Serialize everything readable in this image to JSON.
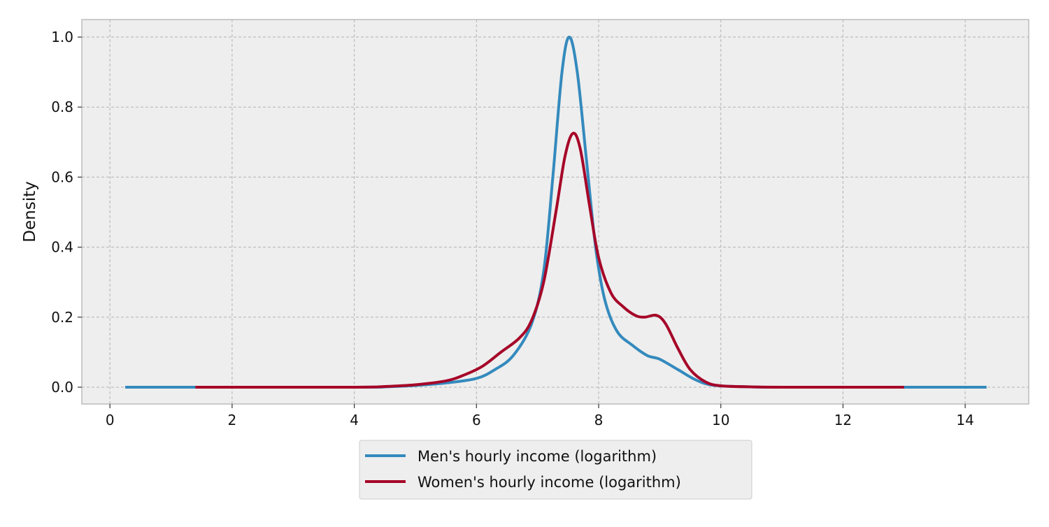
{
  "chart_data": {
    "type": "line",
    "title": "",
    "xlabel": "",
    "ylabel": "Density",
    "xlim": [
      -0.46,
      15.04
    ],
    "ylim": [
      -0.048,
      1.05
    ],
    "xticks": [
      0,
      2,
      4,
      6,
      8,
      10,
      12,
      14
    ],
    "xtick_labels": [
      "0",
      "2",
      "4",
      "6",
      "8",
      "10",
      "12",
      "14"
    ],
    "yticks": [
      0.0,
      0.2,
      0.4,
      0.6,
      0.8,
      1.0
    ],
    "ytick_labels": [
      "0.0",
      "0.2",
      "0.4",
      "0.6",
      "0.8",
      "1.0"
    ],
    "grid": true,
    "legend_position": "below-center",
    "series": [
      {
        "name": "Men's hourly income (logarithm)",
        "color": "#348abd",
        "x": [
          0.25,
          4.0,
          4.5,
          5.0,
          5.5,
          6.0,
          6.3,
          6.6,
          6.9,
          7.1,
          7.25,
          7.4,
          7.52,
          7.65,
          7.8,
          7.95,
          8.1,
          8.3,
          8.55,
          8.8,
          9.0,
          9.3,
          9.6,
          9.9,
          10.5,
          11.0,
          14.35
        ],
        "y": [
          0,
          0,
          0.001,
          0.005,
          0.012,
          0.025,
          0.05,
          0.09,
          0.18,
          0.33,
          0.6,
          0.9,
          1.0,
          0.9,
          0.65,
          0.4,
          0.25,
          0.16,
          0.12,
          0.09,
          0.08,
          0.05,
          0.02,
          0.005,
          0.001,
          0,
          0
        ]
      },
      {
        "name": "Women's hourly income (logarithm)",
        "color": "#a60628",
        "x": [
          1.4,
          4.0,
          4.5,
          5.0,
          5.5,
          5.8,
          6.1,
          6.4,
          6.7,
          6.9,
          7.1,
          7.3,
          7.45,
          7.58,
          7.7,
          7.85,
          8.0,
          8.2,
          8.4,
          8.6,
          8.75,
          8.95,
          9.1,
          9.3,
          9.5,
          9.75,
          10.0,
          10.5,
          11.0,
          13.0
        ],
        "y": [
          0,
          0,
          0.002,
          0.007,
          0.018,
          0.035,
          0.06,
          0.1,
          0.14,
          0.19,
          0.3,
          0.5,
          0.66,
          0.725,
          0.68,
          0.52,
          0.37,
          0.27,
          0.23,
          0.205,
          0.2,
          0.205,
          0.18,
          0.11,
          0.05,
          0.015,
          0.004,
          0.001,
          0,
          0
        ]
      }
    ]
  }
}
